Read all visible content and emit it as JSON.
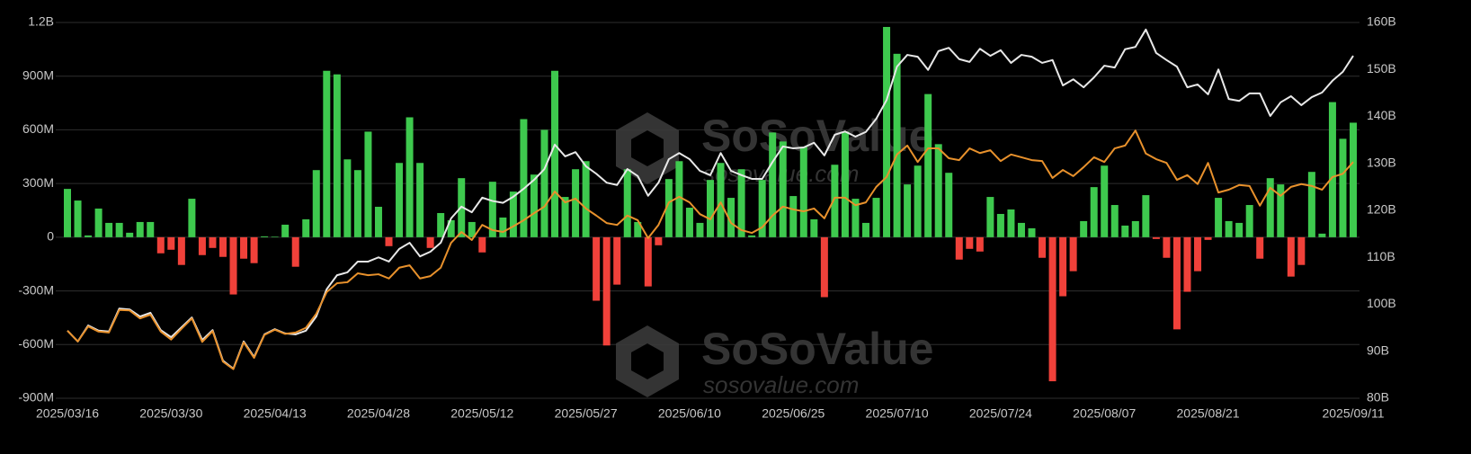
{
  "chart_data": {
    "type": "bar",
    "watermark": {
      "brand": "SoSoValue",
      "site": "sosovalue.com"
    },
    "categories": [
      "2025/03/16",
      null,
      null,
      null,
      null,
      null,
      null,
      null,
      null,
      null,
      "2025/03/30",
      null,
      null,
      null,
      null,
      null,
      null,
      null,
      null,
      null,
      "2025/04/13",
      null,
      null,
      null,
      null,
      null,
      null,
      null,
      null,
      null,
      "2025/04/28",
      null,
      null,
      null,
      null,
      null,
      null,
      null,
      null,
      null,
      "2025/05/12",
      null,
      null,
      null,
      null,
      null,
      null,
      null,
      null,
      null,
      "2025/05/27",
      null,
      null,
      null,
      null,
      null,
      null,
      null,
      null,
      null,
      "2025/06/10",
      null,
      null,
      null,
      null,
      null,
      null,
      null,
      null,
      null,
      "2025/06/25",
      null,
      null,
      null,
      null,
      null,
      null,
      null,
      null,
      null,
      "2025/07/10",
      null,
      null,
      null,
      null,
      null,
      null,
      null,
      null,
      null,
      "2025/07/24",
      null,
      null,
      null,
      null,
      null,
      null,
      null,
      null,
      null,
      "2025/08/07",
      null,
      null,
      null,
      null,
      null,
      null,
      null,
      null,
      null,
      "2025/08/21",
      null,
      null,
      null,
      null,
      null,
      null,
      null,
      null,
      null,
      null,
      null,
      null,
      null,
      "2025/09/11"
    ],
    "series": [
      {
        "type": "bar",
        "positive_color": "#3ec94e",
        "negative_color": "#f0413a",
        "values": [
          270,
          205,
          10,
          160,
          80,
          80,
          25,
          85,
          85,
          -90,
          -70,
          -155,
          215,
          -100,
          -60,
          -110,
          -320,
          -120,
          -145,
          5,
          3,
          70,
          -165,
          100,
          375,
          930,
          910,
          435,
          375,
          590,
          170,
          -50,
          415,
          670,
          415,
          -60,
          135,
          95,
          330,
          85,
          -85,
          310,
          110,
          255,
          660,
          350,
          600,
          930,
          225,
          380,
          425,
          -355,
          -605,
          -265,
          380,
          85,
          -275,
          -45,
          325,
          425,
          165,
          80,
          320,
          415,
          220,
          380,
          10,
          320,
          585,
          535,
          230,
          505,
          100,
          -335,
          405,
          590,
          215,
          80,
          220,
          1175,
          1025,
          295,
          400,
          800,
          520,
          360,
          -125,
          -65,
          -80,
          225,
          130,
          155,
          80,
          50,
          -115,
          -805,
          -330,
          -190,
          90,
          280,
          400,
          180,
          65,
          90,
          235,
          -10,
          -115,
          -515,
          -305,
          -190,
          -15,
          220,
          90,
          80,
          180,
          -120,
          330,
          295,
          -220,
          -155,
          365,
          20,
          755,
          550,
          640
        ]
      },
      {
        "type": "line",
        "axis": "y2",
        "color": "#e8e8e8",
        "values": [
          94.4,
          92.1,
          95.5,
          94.4,
          94.2,
          99.1,
          98.9,
          97.4,
          98.2,
          94.5,
          93.0,
          95.1,
          97.2,
          92.4,
          94.5,
          88.0,
          86.3,
          92.1,
          88.8,
          93.6,
          94.7,
          93.8,
          93.6,
          94.4,
          97.4,
          103.2,
          106.2,
          106.8,
          109.1,
          109.1,
          110.0,
          109.1,
          111.8,
          113.1,
          110.2,
          111.2,
          113.1,
          118.3,
          120.8,
          119.6,
          122.7,
          122.0,
          121.6,
          122.9,
          124.6,
          126.5,
          128.8,
          134.0,
          131.5,
          132.4,
          129.4,
          127.8,
          125.9,
          125.4,
          128.8,
          127.3,
          123.1,
          125.9,
          130.9,
          132.2,
          130.9,
          128.4,
          127.5,
          132.2,
          128.4,
          127.5,
          126.7,
          126.7,
          130.3,
          133.6,
          133.2,
          133.4,
          134.4,
          131.7,
          136.1,
          136.8,
          135.7,
          136.7,
          139.5,
          143.5,
          150.6,
          153.1,
          152.7,
          149.9,
          153.9,
          154.6,
          152.2,
          151.6,
          154.4,
          152.9,
          154.1,
          151.4,
          153.1,
          152.7,
          151.4,
          152.0,
          146.6,
          147.9,
          146.2,
          148.3,
          150.8,
          150.4,
          154.3,
          154.8,
          158.5,
          153.5,
          152.0,
          150.6,
          146.2,
          146.8,
          144.7,
          150.0,
          143.7,
          143.3,
          144.9,
          144.9,
          140.1,
          143.0,
          144.3,
          142.4,
          144.1,
          145.1,
          147.6,
          149.5,
          152.9
        ]
      },
      {
        "type": "line",
        "axis": "y2",
        "color": "#e8912c",
        "values": [
          94.4,
          92.1,
          95.3,
          94.2,
          94.0,
          98.8,
          98.7,
          97.0,
          97.8,
          94.2,
          92.5,
          94.8,
          97.0,
          92.0,
          94.3,
          87.8,
          86.2,
          91.9,
          88.6,
          93.5,
          94.6,
          93.7,
          94.0,
          95.0,
          98.0,
          102.6,
          104.5,
          104.7,
          106.6,
          106.2,
          106.4,
          105.5,
          107.8,
          108.3,
          105.5,
          106.0,
          107.8,
          113.1,
          115.4,
          113.7,
          116.9,
          115.8,
          115.4,
          116.6,
          117.9,
          119.4,
          120.8,
          124.0,
          121.7,
          122.5,
          120.4,
          118.9,
          117.3,
          116.9,
          118.9,
          117.9,
          114.1,
          116.9,
          121.7,
          122.9,
          121.7,
          119.2,
          118.1,
          121.7,
          117.3,
          115.8,
          115.2,
          116.4,
          118.9,
          120.8,
          120.2,
          119.8,
          120.4,
          118.3,
          122.7,
          122.7,
          121.1,
          121.7,
          125.0,
          127.1,
          131.9,
          133.8,
          130.3,
          133.2,
          133.2,
          131.1,
          130.7,
          133.2,
          132.2,
          132.8,
          130.5,
          131.9,
          131.3,
          130.7,
          130.5,
          126.9,
          128.6,
          127.3,
          129.2,
          131.3,
          130.3,
          133.2,
          133.8,
          137.0,
          132.1,
          130.9,
          130.1,
          126.5,
          127.5,
          125.6,
          130.1,
          123.8,
          124.4,
          125.4,
          125.2,
          121.0,
          124.8,
          123.1,
          125.0,
          125.6,
          125.2,
          124.4,
          127.1,
          127.8,
          130.3
        ]
      }
    ],
    "ylim": [
      -900,
      1200
    ],
    "yticks": [
      {
        "value": -900,
        "label": "-900M"
      },
      {
        "value": -600,
        "label": "-600M"
      },
      {
        "value": -300,
        "label": "-300M"
      },
      0,
      {
        "value": 300,
        "label": "300M"
      },
      {
        "value": 600,
        "label": "600M"
      },
      {
        "value": 900,
        "label": "900M"
      },
      {
        "value": 1200,
        "label": "1.2B"
      }
    ],
    "y2lim": [
      80,
      160
    ],
    "y2ticks": [
      {
        "value": 80,
        "label": "80B"
      },
      {
        "value": 90,
        "label": "90B"
      },
      {
        "value": 100,
        "label": "100B"
      },
      {
        "value": 110,
        "label": "110B"
      },
      {
        "value": 120,
        "label": "120B"
      },
      {
        "value": 130,
        "label": "130B"
      },
      {
        "value": 140,
        "label": "140B"
      },
      {
        "value": 150,
        "label": "150B"
      },
      {
        "value": 160,
        "label": "160B"
      }
    ],
    "grid": true
  }
}
